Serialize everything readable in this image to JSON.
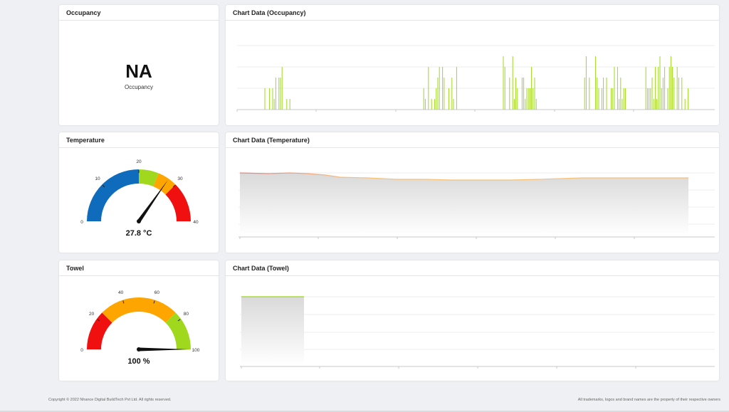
{
  "occupancy": {
    "title": "Occupancy",
    "value": "NA",
    "label": "Occupancy"
  },
  "occupancy_chart": {
    "title": "Chart Data (Occupancy)"
  },
  "temperature": {
    "title": "Temperature",
    "value": "27.8 °C",
    "gauge": {
      "min": 0,
      "max": 40,
      "value": 27.8,
      "ticks": [
        "0",
        "10",
        "20",
        "30",
        "40"
      ],
      "bands": [
        {
          "from": 0,
          "to": 20,
          "color": "#0f6cbd"
        },
        {
          "from": 20,
          "to": 25,
          "color": "#9fd81c"
        },
        {
          "from": 25,
          "to": 30,
          "color": "#ffa500"
        },
        {
          "from": 30,
          "to": 40,
          "color": "#f01010"
        }
      ]
    }
  },
  "temperature_chart": {
    "title": "Chart Data (Temperature)"
  },
  "towel": {
    "title": "Towel",
    "value": "100 %",
    "gauge": {
      "min": 0,
      "max": 100,
      "value": 100,
      "ticks": [
        "0",
        "20",
        "40",
        "60",
        "80",
        "100"
      ],
      "bands": [
        {
          "from": 0,
          "to": 25,
          "color": "#f01010"
        },
        {
          "from": 25,
          "to": 75,
          "color": "#ffa500"
        },
        {
          "from": 75,
          "to": 100,
          "color": "#9fd81c"
        }
      ]
    }
  },
  "towel_chart": {
    "title": "Chart Data (Towel)"
  },
  "footer": {
    "copyright": "Copyright © 2022 Nhance Digital BuildTech Pvt Ltd. All rights reserved.",
    "trademark": "All trademarks, logos and brand names are the property of their respective owners"
  },
  "colors": {
    "occupancy_bar": "#9fd81c",
    "temp_line_start": "#f08080",
    "temp_line_end": "#f5c27a",
    "towel_line": "#9fd81c"
  }
}
